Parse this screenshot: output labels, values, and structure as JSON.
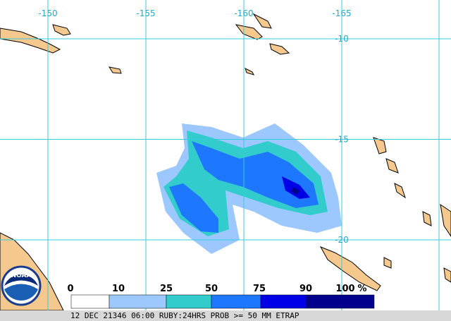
{
  "map": {
    "lon_labels": [
      -150,
      -155,
      -160,
      -165
    ],
    "lat_labels": [
      -10,
      -15,
      -20
    ],
    "grid_color": "#33ccdd",
    "land_color": "#f5c98e"
  },
  "logo": {
    "text": "NOAA"
  },
  "legend": {
    "ticks": [
      0,
      10,
      25,
      50,
      75,
      90,
      100
    ],
    "unit": "%",
    "colors": [
      "#ffffff",
      "#9cc8ff",
      "#33cccc",
      "#1e78ff",
      "#0000e6",
      "#00008c"
    ]
  },
  "footer": "12 DEC 21346 06:00 RUBY:24HRS PROB >= 50 MM ETRAP"
}
